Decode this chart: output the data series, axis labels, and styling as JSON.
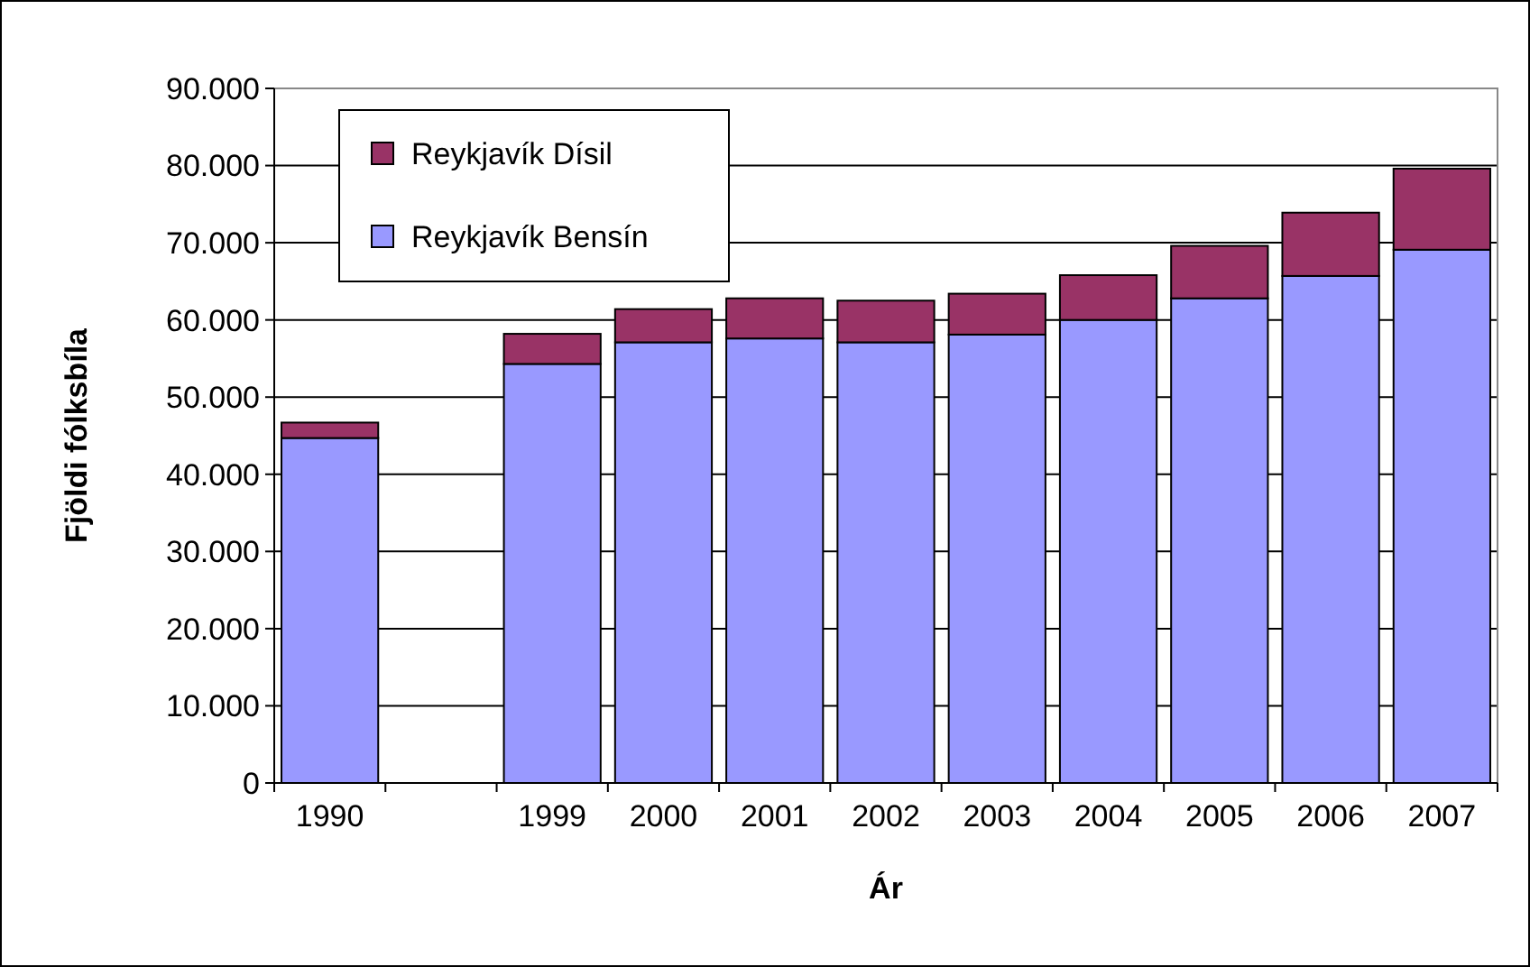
{
  "chart_data": {
    "type": "bar",
    "stacked": true,
    "xlabel": "Ár",
    "ylabel": "Fjöldi fólksbíla",
    "categories": [
      "1990",
      null,
      "1999",
      "2000",
      "2001",
      "2002",
      "2003",
      "2004",
      "2005",
      "2006",
      "2007"
    ],
    "series": [
      {
        "name": "Reykjavík Bensín",
        "color": "#9999ff",
        "values": [
          44700,
          null,
          54300,
          57100,
          57600,
          57100,
          58100,
          60000,
          62800,
          65700,
          69100
        ]
      },
      {
        "name": "Reykjavík Dísil",
        "color": "#993366",
        "values": [
          2000,
          null,
          3900,
          4300,
          5200,
          5400,
          5300,
          5800,
          6800,
          8200,
          10500
        ]
      }
    ],
    "ylim": [
      0,
      90000
    ],
    "yticks": [
      {
        "value": 0,
        "label": "0"
      },
      {
        "value": 10000,
        "label": "10.000"
      },
      {
        "value": 20000,
        "label": "20.000"
      },
      {
        "value": 30000,
        "label": "30.000"
      },
      {
        "value": 40000,
        "label": "40.000"
      },
      {
        "value": 50000,
        "label": "50.000"
      },
      {
        "value": 60000,
        "label": "60.000"
      },
      {
        "value": 70000,
        "label": "70.000"
      },
      {
        "value": 80000,
        "label": "80.000"
      },
      {
        "value": 90000,
        "label": "90.000"
      }
    ],
    "grid": "y",
    "legend": "top left"
  }
}
